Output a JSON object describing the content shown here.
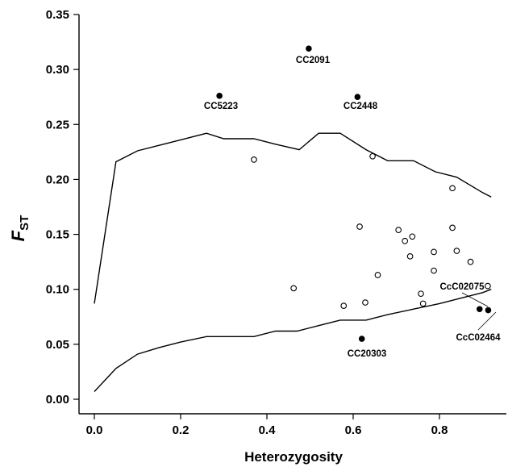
{
  "chart_data": {
    "type": "scatter",
    "title": "",
    "xlabel": "Heterozygosity",
    "ylabel": {
      "main": "F",
      "sub": "ST"
    },
    "xlim": [
      -0.02,
      0.92
    ],
    "ylim": [
      -0.01,
      0.35
    ],
    "xticks": [
      {
        "value": 0.0,
        "label": "0.0"
      },
      {
        "value": 0.2,
        "label": "0.2"
      },
      {
        "value": 0.4,
        "label": "0.4"
      },
      {
        "value": 0.6,
        "label": "0.6"
      },
      {
        "value": 0.8,
        "label": "0.8"
      }
    ],
    "yticks": [
      {
        "value": 0.0,
        "label": "0.00"
      },
      {
        "value": 0.05,
        "label": "0.05"
      },
      {
        "value": 0.1,
        "label": "0.10"
      },
      {
        "value": 0.15,
        "label": "0.15"
      },
      {
        "value": 0.2,
        "label": "0.20"
      },
      {
        "value": 0.25,
        "label": "0.25"
      },
      {
        "value": 0.3,
        "label": "0.30"
      },
      {
        "value": 0.35,
        "label": "0.35"
      }
    ],
    "grid": false,
    "upper_bound": [
      [
        0.0,
        0.087
      ],
      [
        0.05,
        0.216
      ],
      [
        0.1,
        0.226
      ],
      [
        0.15,
        0.231
      ],
      [
        0.2,
        0.236
      ],
      [
        0.26,
        0.242
      ],
      [
        0.3,
        0.237
      ],
      [
        0.37,
        0.237
      ],
      [
        0.42,
        0.232
      ],
      [
        0.475,
        0.227
      ],
      [
        0.52,
        0.242
      ],
      [
        0.57,
        0.242
      ],
      [
        0.63,
        0.227
      ],
      [
        0.68,
        0.217
      ],
      [
        0.74,
        0.217
      ],
      [
        0.79,
        0.207
      ],
      [
        0.84,
        0.202
      ],
      [
        0.9,
        0.188
      ],
      [
        0.92,
        0.184
      ]
    ],
    "lower_bound": [
      [
        0.0,
        0.007
      ],
      [
        0.05,
        0.028
      ],
      [
        0.1,
        0.041
      ],
      [
        0.15,
        0.047
      ],
      [
        0.2,
        0.052
      ],
      [
        0.26,
        0.057
      ],
      [
        0.3,
        0.057
      ],
      [
        0.37,
        0.057
      ],
      [
        0.42,
        0.062
      ],
      [
        0.47,
        0.062
      ],
      [
        0.52,
        0.067
      ],
      [
        0.57,
        0.072
      ],
      [
        0.63,
        0.072
      ],
      [
        0.68,
        0.077
      ],
      [
        0.74,
        0.082
      ],
      [
        0.8,
        0.087
      ],
      [
        0.85,
        0.092
      ],
      [
        0.9,
        0.097
      ],
      [
        0.92,
        0.1
      ]
    ],
    "neutral_points": [
      [
        0.37,
        0.218
      ],
      [
        0.645,
        0.221
      ],
      [
        0.83,
        0.192
      ],
      [
        0.462,
        0.101
      ],
      [
        0.615,
        0.157
      ],
      [
        0.705,
        0.154
      ],
      [
        0.72,
        0.144
      ],
      [
        0.737,
        0.148
      ],
      [
        0.732,
        0.13
      ],
      [
        0.657,
        0.113
      ],
      [
        0.787,
        0.134
      ],
      [
        0.787,
        0.117
      ],
      [
        0.83,
        0.156
      ],
      [
        0.84,
        0.135
      ],
      [
        0.872,
        0.125
      ],
      [
        0.757,
        0.096
      ],
      [
        0.762,
        0.087
      ],
      [
        0.578,
        0.085
      ],
      [
        0.628,
        0.088
      ],
      [
        0.912,
        0.103
      ]
    ],
    "outlier_points": [
      {
        "x": 0.497,
        "y": 0.319,
        "label": "CC2091"
      },
      {
        "x": 0.29,
        "y": 0.276,
        "label": "CC5223"
      },
      {
        "x": 0.61,
        "y": 0.275,
        "label": "CC2448"
      },
      {
        "x": 0.62,
        "y": 0.055,
        "label": "CC20303"
      },
      {
        "x": 0.893,
        "y": 0.082,
        "label": "CcC02075"
      },
      {
        "x": 0.913,
        "y": 0.081,
        "label": "CcC02464"
      }
    ]
  }
}
